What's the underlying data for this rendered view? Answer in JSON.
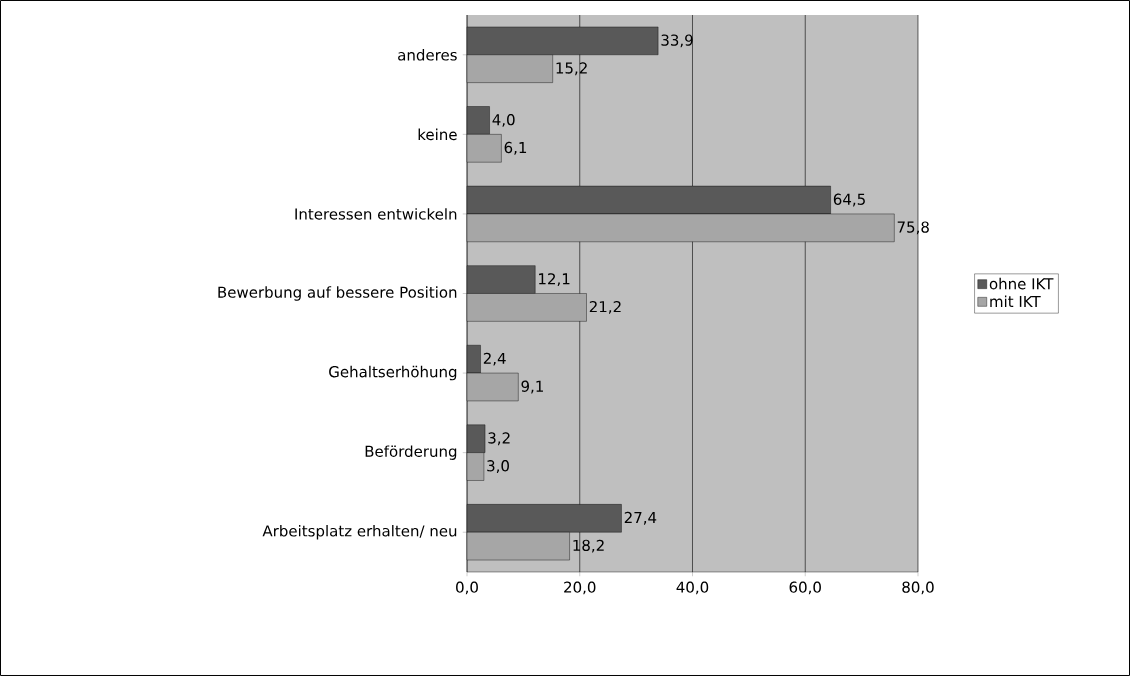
{
  "chart_data": {
    "type": "bar",
    "orientation": "horizontal",
    "categories": [
      "anderes",
      "keine",
      "Interessen entwickeln",
      "Bewerbung auf bessere Position",
      "Gehaltserhöhung",
      "Beförderung",
      "Arbeitsplatz erhalten/ neu"
    ],
    "series": [
      {
        "name": "ohne IKT",
        "color": "#595959",
        "values": [
          33.9,
          4.0,
          64.5,
          12.1,
          2.4,
          3.2,
          27.4
        ],
        "value_labels": [
          "33,9",
          "4,0",
          "64,5",
          "12,1",
          "2,4",
          "3,2",
          "27,4"
        ]
      },
      {
        "name": "mit IKT",
        "color": "#a6a6a6",
        "values": [
          15.2,
          6.1,
          75.8,
          21.2,
          9.1,
          3.0,
          18.2
        ],
        "value_labels": [
          "15,2",
          "6,1",
          "75,8",
          "21,2",
          "9,1",
          "3,0",
          "18,2"
        ]
      }
    ],
    "xlim": [
      0,
      80
    ],
    "xticks": [
      {
        "value": 0,
        "label": "0,0"
      },
      {
        "value": 20,
        "label": "20,0"
      },
      {
        "value": 40,
        "label": "40,0"
      },
      {
        "value": 60,
        "label": "60,0"
      },
      {
        "value": 80,
        "label": "80,0"
      }
    ],
    "grid": "x",
    "legend": "right"
  }
}
